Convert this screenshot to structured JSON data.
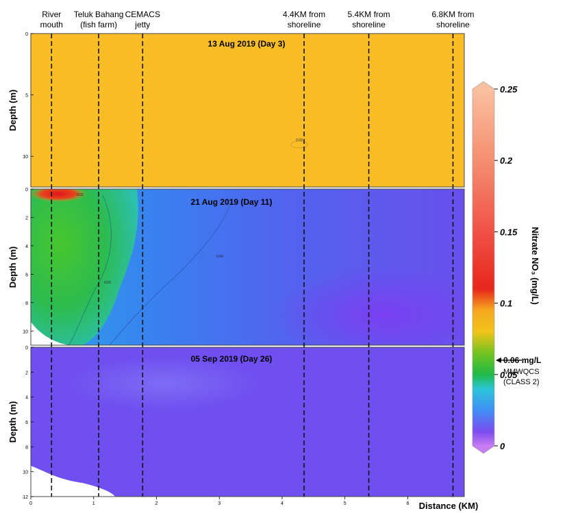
{
  "chart_data": {
    "type": "heatmap",
    "xlabel": "Distance (KM)",
    "x_ticks": [
      "0",
      "1",
      "2",
      "3",
      "4",
      "5",
      "6"
    ],
    "xlim": [
      0,
      6.9
    ],
    "stations": [
      {
        "label": "River\nmouth",
        "x": 0.33
      },
      {
        "label": "Teluk Bahang\n(fish farm)",
        "x": 1.08
      },
      {
        "label": "CEMACS\njetty",
        "x": 1.78
      },
      {
        "label": "4.4KM from\nshoreline",
        "x": 4.35
      },
      {
        "label": "5.4KM from\nshoreline",
        "x": 5.38
      },
      {
        "label": "6.8KM from\nshoreline",
        "x": 6.72
      }
    ],
    "panels": [
      {
        "title": "13 Aug 2019 (Day 3)",
        "ylabel": "Depth (m)",
        "y_ticks": [
          "0",
          "5",
          "10"
        ],
        "ylim": [
          0,
          12.5
        ],
        "dominant_nitrate_mg_L": 0.09,
        "contour_label": "0.09",
        "color": "#fbbd25"
      },
      {
        "title": "21 Aug 2019 (Day 11)",
        "ylabel": "Depth (m)",
        "y_ticks": [
          "0",
          "2",
          "4",
          "6",
          "8",
          "10"
        ],
        "ylim": [
          0,
          11
        ],
        "nearshore_nitrate_mg_L": 0.05,
        "surface_max_nitrate_mg_L": 0.11,
        "offshore_nitrate_mg_L": 0.01,
        "contour_labels": [
          "0.04",
          "0.03",
          "0.02"
        ]
      },
      {
        "title": "05 Sep 2019 (Day 26)",
        "ylabel": "Depth (m)",
        "y_ticks": [
          "0",
          "2",
          "4",
          "6",
          "8",
          "10",
          "12"
        ],
        "ylim": [
          0,
          12
        ],
        "dominant_nitrate_mg_L": 0.01,
        "color": "#6f4ff0"
      }
    ],
    "colorbar": {
      "label": "Nitrate NO₃ (mg/L)",
      "ticks": [
        "0.25",
        "0.2",
        "0.15",
        "0.1",
        "0.05",
        "0"
      ],
      "range": [
        0,
        0.25
      ],
      "stops": [
        {
          "value": 0.0,
          "color": "#c77cf2"
        },
        {
          "value": 0.01,
          "color": "#7c4cf0"
        },
        {
          "value": 0.025,
          "color": "#3f8ff5"
        },
        {
          "value": 0.04,
          "color": "#2cc6d8"
        },
        {
          "value": 0.05,
          "color": "#1fba46"
        },
        {
          "value": 0.065,
          "color": "#73c320"
        },
        {
          "value": 0.08,
          "color": "#f2c31b"
        },
        {
          "value": 0.095,
          "color": "#f6a81e"
        },
        {
          "value": 0.11,
          "color": "#e7271c"
        },
        {
          "value": 0.15,
          "color": "#f05148"
        },
        {
          "value": 0.2,
          "color": "#f58e70"
        },
        {
          "value": 0.25,
          "color": "#f9c0a0"
        }
      ]
    },
    "annotation": {
      "value_text": "0.06 mg/L",
      "line1": "MMWQCS",
      "line2": "(CLASS 2)",
      "at_value": 0.06
    }
  }
}
